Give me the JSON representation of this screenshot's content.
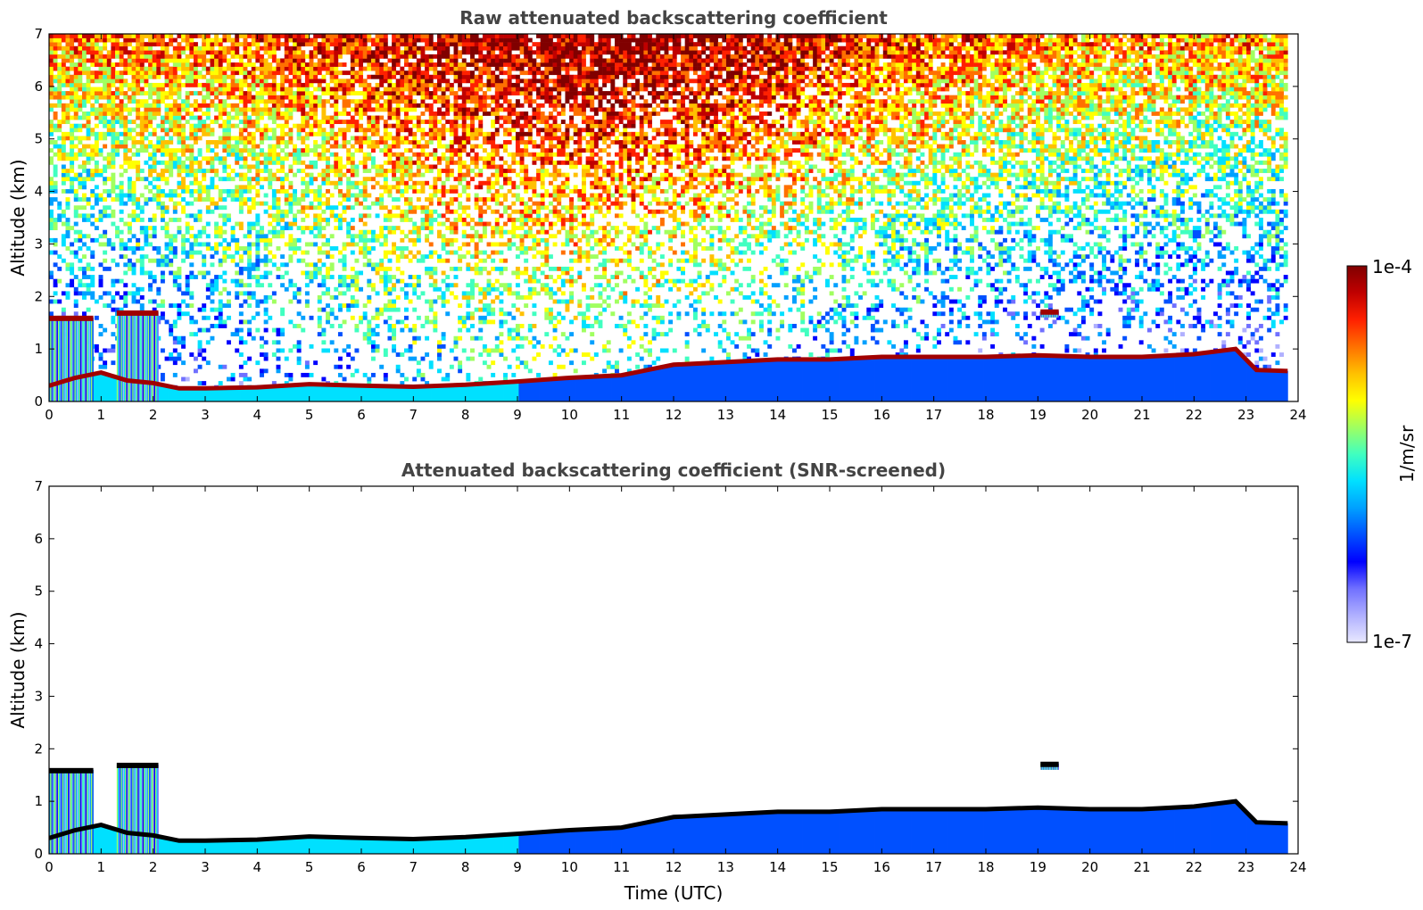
{
  "chart_data": [
    {
      "type": "heatmap",
      "title": "Raw attenuated backscattering coefficient",
      "xlabel": "",
      "ylabel": "Altitude (km)",
      "xlim": [
        0,
        24
      ],
      "ylim": [
        0,
        7
      ],
      "xticks": [
        "0",
        "1",
        "2",
        "3",
        "4",
        "5",
        "6",
        "7",
        "8",
        "9",
        "10",
        "11",
        "12",
        "13",
        "14",
        "15",
        "16",
        "17",
        "18",
        "19",
        "20",
        "21",
        "22",
        "23",
        "24"
      ],
      "yticks": [
        "0",
        "1",
        "2",
        "3",
        "4",
        "5",
        "6",
        "7"
      ],
      "boundary_layer_top_km": [
        [
          0,
          0.3
        ],
        [
          0.5,
          0.45
        ],
        [
          1,
          0.55
        ],
        [
          1.5,
          0.4
        ],
        [
          2,
          0.35
        ],
        [
          2.5,
          0.25
        ],
        [
          3,
          0.25
        ],
        [
          4,
          0.27
        ],
        [
          5,
          0.33
        ],
        [
          6,
          0.3
        ],
        [
          7,
          0.28
        ],
        [
          8,
          0.32
        ],
        [
          9,
          0.38
        ],
        [
          10,
          0.45
        ],
        [
          11,
          0.5
        ],
        [
          11.5,
          0.6
        ],
        [
          12,
          0.7
        ],
        [
          13,
          0.75
        ],
        [
          14,
          0.8
        ],
        [
          15,
          0.8
        ],
        [
          16,
          0.85
        ],
        [
          17,
          0.85
        ],
        [
          18,
          0.85
        ],
        [
          19,
          0.88
        ],
        [
          20,
          0.85
        ],
        [
          21,
          0.85
        ],
        [
          22,
          0.9
        ],
        [
          22.8,
          1.0
        ],
        [
          23.2,
          0.6
        ],
        [
          23.8,
          0.58
        ]
      ],
      "cloud_layers": [
        {
          "x": [
            0,
            0.85
          ],
          "base_km": 0.0,
          "top_km": 1.6
        },
        {
          "x": [
            1.3,
            2.1
          ],
          "base_km": 0.0,
          "top_km": 1.7
        },
        {
          "x": [
            19.05,
            19.4
          ],
          "base_km": 1.6,
          "top_km": 1.72
        }
      ],
      "data_extent_hours": [
        0,
        23.8
      ],
      "noise": true
    },
    {
      "type": "heatmap",
      "title": "Attenuated backscattering coefficient (SNR-screened)",
      "xlabel": "Time (UTC)",
      "ylabel": "Altitude (km)",
      "xlim": [
        0,
        24
      ],
      "ylim": [
        0,
        7
      ],
      "xticks": [
        "0",
        "1",
        "2",
        "3",
        "4",
        "5",
        "6",
        "7",
        "8",
        "9",
        "10",
        "11",
        "12",
        "13",
        "14",
        "15",
        "16",
        "17",
        "18",
        "19",
        "20",
        "21",
        "22",
        "23",
        "24"
      ],
      "yticks": [
        "0",
        "1",
        "2",
        "3",
        "4",
        "5",
        "6",
        "7"
      ],
      "boundary_layer_top_km": [
        [
          0,
          0.3
        ],
        [
          0.5,
          0.45
        ],
        [
          1,
          0.55
        ],
        [
          1.5,
          0.4
        ],
        [
          2,
          0.35
        ],
        [
          2.5,
          0.25
        ],
        [
          3,
          0.25
        ],
        [
          4,
          0.27
        ],
        [
          5,
          0.33
        ],
        [
          6,
          0.3
        ],
        [
          7,
          0.28
        ],
        [
          8,
          0.32
        ],
        [
          9,
          0.38
        ],
        [
          10,
          0.45
        ],
        [
          11,
          0.5
        ],
        [
          11.5,
          0.6
        ],
        [
          12,
          0.7
        ],
        [
          13,
          0.75
        ],
        [
          14,
          0.8
        ],
        [
          15,
          0.8
        ],
        [
          16,
          0.85
        ],
        [
          17,
          0.85
        ],
        [
          18,
          0.85
        ],
        [
          19,
          0.88
        ],
        [
          20,
          0.85
        ],
        [
          21,
          0.85
        ],
        [
          22,
          0.9
        ],
        [
          22.8,
          1.0
        ],
        [
          23.2,
          0.6
        ],
        [
          23.8,
          0.58
        ]
      ],
      "cloud_layers": [
        {
          "x": [
            0,
            0.85
          ],
          "base_km": 0.0,
          "top_km": 1.6
        },
        {
          "x": [
            1.3,
            2.1
          ],
          "base_km": 0.0,
          "top_km": 1.7
        },
        {
          "x": [
            19.05,
            19.4
          ],
          "base_km": 1.6,
          "top_km": 1.72
        }
      ],
      "data_extent_hours": [
        0,
        23.8
      ],
      "noise": false
    }
  ],
  "colorbar": {
    "label": "1/m/sr",
    "max_label": "1e-4",
    "min_label": "1e-7",
    "scale": "log",
    "range": [
      1e-07,
      0.0001
    ],
    "colormap": "jet",
    "colors": [
      "#e8e8ff",
      "#b0b0ff",
      "#7070ff",
      "#0000ff",
      "#0050ff",
      "#00a0ff",
      "#00e0ff",
      "#40ffc0",
      "#a0ff60",
      "#ffff00",
      "#ffc000",
      "#ff7000",
      "#ff2000",
      "#c00000",
      "#800000"
    ]
  }
}
